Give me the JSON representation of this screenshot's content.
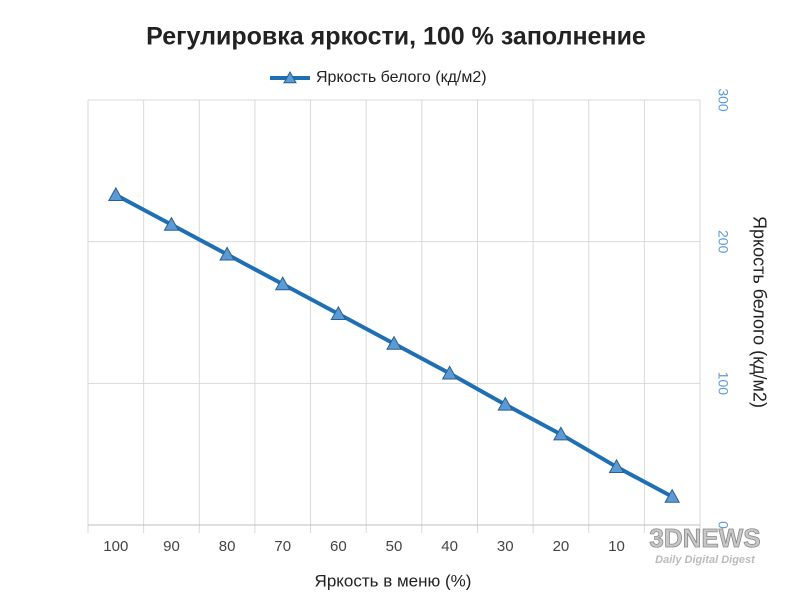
{
  "chart_data": {
    "type": "line",
    "title": "Регулировка яркости, 100 % заполнение",
    "x_label": "Яркость в меню (%)",
    "y2_label": "Яркость белого (кд/м2)",
    "categories": [
      "100",
      "90",
      "80",
      "70",
      "60",
      "50",
      "40",
      "30",
      "20",
      "10",
      null
    ],
    "series": [
      {
        "name": "Яркость белого (кд/м2)",
        "color": "#1f6fb5",
        "marker_color": "#5b9bd5",
        "axis": "y2",
        "values": [
          233,
          212,
          191,
          170,
          149,
          128,
          107,
          85,
          64,
          41,
          20
        ]
      }
    ],
    "y2lim": [
      0,
      300
    ],
    "y2ticks": [
      0,
      100,
      200,
      300
    ],
    "y2tick_color": "#5b9bd5",
    "grid": true,
    "legend": "top",
    "watermark": "3DNEWS",
    "watermark_sub": "Daily Digital Digest"
  }
}
